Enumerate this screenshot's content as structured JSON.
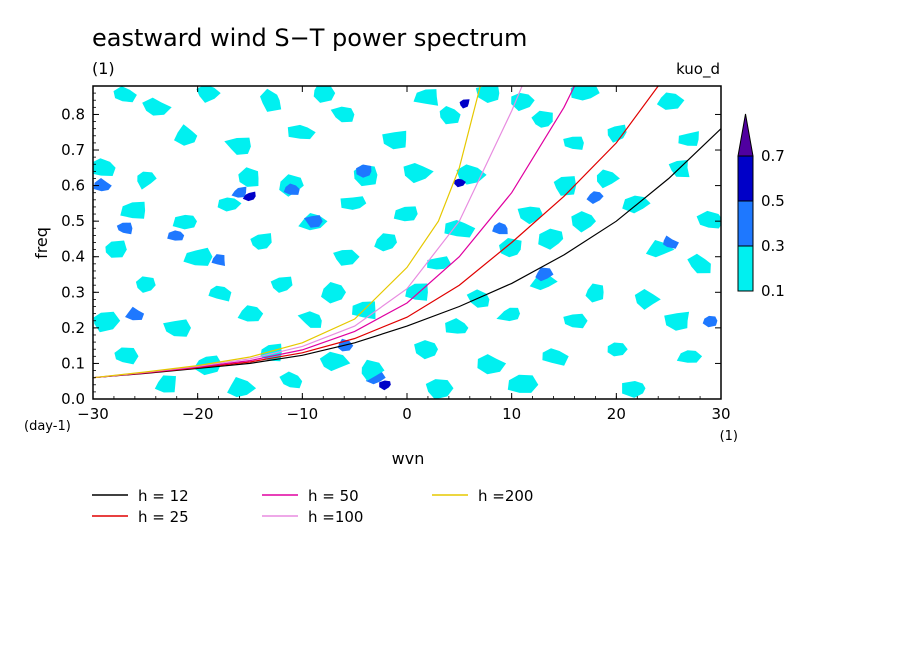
{
  "chart_data": {
    "type": "heatmap",
    "title": "eastward wind S−T power spectrum",
    "subtitle_left": "(1)",
    "subtitle_right": "kuo_d",
    "xlabel": "wvn",
    "ylabel": "freq",
    "x_unit": "(1)",
    "y_unit": "(day-1)",
    "xlim": [
      -30,
      30
    ],
    "ylim": [
      0,
      0.88
    ],
    "x_ticks": [
      -30,
      -20,
      -10,
      0,
      10,
      20,
      30
    ],
    "x_tick_labels": [
      "−30",
      "−20",
      "−10",
      "0",
      "10",
      "20",
      "30"
    ],
    "y_ticks": [
      0,
      0.1,
      0.2,
      0.3,
      0.4,
      0.5,
      0.6,
      0.7,
      0.8
    ],
    "y_tick_labels": [
      "0.0",
      "0.1",
      "0.2",
      "0.3",
      "0.4",
      "0.5",
      "0.6",
      "0.7",
      "0.8"
    ],
    "colorbar": {
      "levels": [
        0.1,
        0.3,
        0.5,
        0.7
      ],
      "labels": [
        "0.1",
        "0.3",
        "0.5",
        "0.7"
      ],
      "colors": [
        "#00f0f0",
        "#1e78ff",
        "#0000c8",
        "#5000a0"
      ],
      "extend": "max"
    },
    "blobs": [
      {
        "x": -27,
        "y": 0.855,
        "level": 1
      },
      {
        "x": -24,
        "y": 0.82,
        "level": 1
      },
      {
        "x": -19,
        "y": 0.86,
        "level": 1
      },
      {
        "x": -13,
        "y": 0.84,
        "level": 1
      },
      {
        "x": -8,
        "y": 0.86,
        "level": 1
      },
      {
        "x": -6,
        "y": 0.8,
        "level": 1
      },
      {
        "x": 2,
        "y": 0.85,
        "level": 1
      },
      {
        "x": 4,
        "y": 0.8,
        "level": 1
      },
      {
        "x": 8,
        "y": 0.86,
        "level": 1
      },
      {
        "x": 11,
        "y": 0.84,
        "level": 1
      },
      {
        "x": 17,
        "y": 0.86,
        "level": 1
      },
      {
        "x": 25,
        "y": 0.84,
        "level": 1
      },
      {
        "x": -21,
        "y": 0.74,
        "level": 1
      },
      {
        "x": -16,
        "y": 0.71,
        "level": 1
      },
      {
        "x": -10,
        "y": 0.75,
        "level": 1
      },
      {
        "x": -1,
        "y": 0.73,
        "level": 1
      },
      {
        "x": 13,
        "y": 0.78,
        "level": 1
      },
      {
        "x": 16,
        "y": 0.72,
        "level": 1
      },
      {
        "x": 20,
        "y": 0.75,
        "level": 1
      },
      {
        "x": 27,
        "y": 0.73,
        "level": 1
      },
      {
        "x": -29,
        "y": 0.65,
        "level": 1
      },
      {
        "x": -25,
        "y": 0.62,
        "level": 1
      },
      {
        "x": -15,
        "y": 0.62,
        "level": 1
      },
      {
        "x": -11,
        "y": 0.6,
        "level": 1
      },
      {
        "x": -4,
        "y": 0.63,
        "level": 1
      },
      {
        "x": 1,
        "y": 0.64,
        "level": 1
      },
      {
        "x": 6,
        "y": 0.63,
        "level": 1
      },
      {
        "x": 15,
        "y": 0.6,
        "level": 1
      },
      {
        "x": 19,
        "y": 0.62,
        "level": 1
      },
      {
        "x": 26,
        "y": 0.65,
        "level": 1
      },
      {
        "x": -26,
        "y": 0.53,
        "level": 1
      },
      {
        "x": -21,
        "y": 0.5,
        "level": 1
      },
      {
        "x": -17,
        "y": 0.55,
        "level": 1
      },
      {
        "x": -9,
        "y": 0.5,
        "level": 1
      },
      {
        "x": -5,
        "y": 0.55,
        "level": 1
      },
      {
        "x": 0,
        "y": 0.52,
        "level": 1
      },
      {
        "x": 5,
        "y": 0.48,
        "level": 1
      },
      {
        "x": 12,
        "y": 0.52,
        "level": 1
      },
      {
        "x": 17,
        "y": 0.5,
        "level": 1
      },
      {
        "x": 22,
        "y": 0.55,
        "level": 1
      },
      {
        "x": 29,
        "y": 0.5,
        "level": 1
      },
      {
        "x": -28,
        "y": 0.42,
        "level": 1
      },
      {
        "x": -20,
        "y": 0.4,
        "level": 1
      },
      {
        "x": -14,
        "y": 0.44,
        "level": 1
      },
      {
        "x": -6,
        "y": 0.4,
        "level": 1
      },
      {
        "x": -2,
        "y": 0.44,
        "level": 1
      },
      {
        "x": 3,
        "y": 0.38,
        "level": 1
      },
      {
        "x": 10,
        "y": 0.42,
        "level": 1
      },
      {
        "x": 14,
        "y": 0.45,
        "level": 1
      },
      {
        "x": 24,
        "y": 0.42,
        "level": 1
      },
      {
        "x": 28,
        "y": 0.38,
        "level": 1
      },
      {
        "x": -25,
        "y": 0.32,
        "level": 1
      },
      {
        "x": -18,
        "y": 0.3,
        "level": 1
      },
      {
        "x": -12,
        "y": 0.32,
        "level": 1
      },
      {
        "x": -7,
        "y": 0.3,
        "level": 1
      },
      {
        "x": 1,
        "y": 0.3,
        "level": 1
      },
      {
        "x": 7,
        "y": 0.28,
        "level": 1
      },
      {
        "x": 13,
        "y": 0.33,
        "level": 1
      },
      {
        "x": 18,
        "y": 0.3,
        "level": 1
      },
      {
        "x": 23,
        "y": 0.28,
        "level": 1
      },
      {
        "x": -29,
        "y": 0.22,
        "level": 1
      },
      {
        "x": -22,
        "y": 0.2,
        "level": 1
      },
      {
        "x": -15,
        "y": 0.24,
        "level": 1
      },
      {
        "x": -9,
        "y": 0.22,
        "level": 1
      },
      {
        "x": -4,
        "y": 0.25,
        "level": 1
      },
      {
        "x": 5,
        "y": 0.2,
        "level": 1
      },
      {
        "x": 10,
        "y": 0.24,
        "level": 1
      },
      {
        "x": 16,
        "y": 0.22,
        "level": 1
      },
      {
        "x": 26,
        "y": 0.22,
        "level": 1
      },
      {
        "x": -27,
        "y": 0.12,
        "level": 1
      },
      {
        "x": -19,
        "y": 0.1,
        "level": 1
      },
      {
        "x": -13,
        "y": 0.13,
        "level": 1
      },
      {
        "x": -7,
        "y": 0.1,
        "level": 1
      },
      {
        "x": 2,
        "y": 0.14,
        "level": 1
      },
      {
        "x": 8,
        "y": 0.1,
        "level": 1
      },
      {
        "x": 14,
        "y": 0.12,
        "level": 1
      },
      {
        "x": 20,
        "y": 0.14,
        "level": 1
      },
      {
        "x": 27,
        "y": 0.12,
        "level": 1
      },
      {
        "x": -23,
        "y": 0.04,
        "level": 1
      },
      {
        "x": -16,
        "y": 0.03,
        "level": 1
      },
      {
        "x": -11,
        "y": 0.05,
        "level": 1
      },
      {
        "x": 3,
        "y": 0.03,
        "level": 1
      },
      {
        "x": 11,
        "y": 0.04,
        "level": 1
      },
      {
        "x": 22,
        "y": 0.03,
        "level": 1
      },
      {
        "x": -3,
        "y": 0.06,
        "level": 2
      },
      {
        "x": -2,
        "y": 0.04,
        "level": 3
      },
      {
        "x": -3.5,
        "y": 0.08,
        "level": 1
      },
      {
        "x": 5.5,
        "y": 0.83,
        "level": 3
      },
      {
        "x": 5,
        "y": 0.61,
        "level": 3
      },
      {
        "x": -16,
        "y": 0.58,
        "level": 2
      },
      {
        "x": -15,
        "y": 0.57,
        "level": 3
      },
      {
        "x": -18,
        "y": 0.39,
        "level": 2
      },
      {
        "x": -27,
        "y": 0.48,
        "level": 2
      },
      {
        "x": -9,
        "y": 0.5,
        "level": 2
      },
      {
        "x": -26,
        "y": 0.24,
        "level": 2
      },
      {
        "x": -22,
        "y": 0.46,
        "level": 2
      },
      {
        "x": -4,
        "y": 0.64,
        "level": 2
      },
      {
        "x": 9,
        "y": 0.48,
        "level": 2
      },
      {
        "x": 13,
        "y": 0.35,
        "level": 2
      },
      {
        "x": -11,
        "y": 0.59,
        "level": 2
      },
      {
        "x": -29,
        "y": 0.6,
        "level": 2
      },
      {
        "x": 25,
        "y": 0.44,
        "level": 2
      },
      {
        "x": 18,
        "y": 0.57,
        "level": 2
      },
      {
        "x": -6,
        "y": 0.15,
        "level": 2
      },
      {
        "x": 29,
        "y": 0.22,
        "level": 2
      }
    ],
    "series": [
      {
        "name": "h = 12",
        "color": "#000000",
        "x": [
          -30,
          -25,
          -20,
          -15,
          -10,
          -5,
          0,
          5,
          10,
          15,
          20,
          25,
          30
        ],
        "y": [
          0.06,
          0.072,
          0.086,
          0.1,
          0.123,
          0.158,
          0.205,
          0.26,
          0.325,
          0.405,
          0.5,
          0.62,
          0.76
        ]
      },
      {
        "name": "h = 25",
        "color": "#e00000",
        "x": [
          -30,
          -25,
          -20,
          -15,
          -10,
          -5,
          0,
          5,
          10,
          15,
          20,
          24
        ],
        "y": [
          0.06,
          0.073,
          0.088,
          0.104,
          0.13,
          0.17,
          0.23,
          0.32,
          0.44,
          0.57,
          0.72,
          0.88
        ]
      },
      {
        "name": "h = 50",
        "color": "#e000a0",
        "x": [
          -30,
          -25,
          -20,
          -15,
          -10,
          -5,
          0,
          5,
          10,
          15,
          16
        ],
        "y": [
          0.06,
          0.074,
          0.09,
          0.108,
          0.138,
          0.19,
          0.27,
          0.4,
          0.58,
          0.82,
          0.88
        ]
      },
      {
        "name": "h =100",
        "color": "#e88ce0",
        "x": [
          -30,
          -25,
          -20,
          -15,
          -10,
          -5,
          0,
          5,
          10,
          11
        ],
        "y": [
          0.06,
          0.075,
          0.092,
          0.113,
          0.148,
          0.205,
          0.31,
          0.5,
          0.81,
          0.88
        ]
      },
      {
        "name": "h =200",
        "color": "#e6c800",
        "x": [
          -30,
          -25,
          -20,
          -15,
          -10,
          -5,
          0,
          3,
          5,
          7
        ],
        "y": [
          0.06,
          0.076,
          0.094,
          0.118,
          0.158,
          0.225,
          0.37,
          0.5,
          0.65,
          0.88
        ]
      }
    ],
    "legend_placement": "bottom",
    "grid": false
  }
}
